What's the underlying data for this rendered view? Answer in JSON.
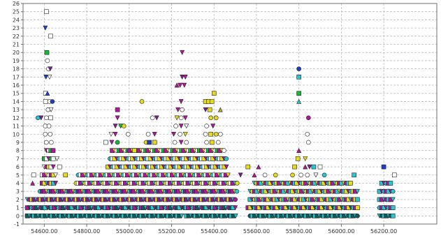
{
  "chart_data": {
    "type": "scatter",
    "title": "",
    "xlabel": "",
    "ylabel": "",
    "xlim": [
      54500,
      56450
    ],
    "ylim": [
      -1,
      26
    ],
    "grid": true,
    "legend": "none",
    "y_ticks": [
      "-1",
      "0",
      "1",
      "2",
      "3",
      "4",
      "5",
      "6",
      "7",
      "8",
      "9",
      "10",
      "11",
      "12",
      "13",
      "14",
      "15",
      "16",
      "17",
      "18",
      "19",
      "20",
      "21",
      "22",
      "23",
      "24",
      "25",
      "26"
    ],
    "x_ticks": [
      {
        "value": 54600,
        "label": "54600.00"
      },
      {
        "value": 54800,
        "label": "54800.00"
      },
      {
        "value": 55000,
        "label": "55000.00"
      },
      {
        "value": 55200,
        "label": "55200.00"
      },
      {
        "value": 55400,
        "label": "55400.00"
      },
      {
        "value": 55600,
        "label": "55600.00"
      },
      {
        "value": 55800,
        "label": "55800.00"
      },
      {
        "value": 56000,
        "label": "56000.00"
      },
      {
        "value": 56200,
        "label": "56200.00"
      }
    ],
    "colors": {
      "teal": "#0f5b5b",
      "cyan": "#27c6d0",
      "magenta": "#b0179b",
      "purple": "#7a1f8f",
      "yellow": "#e6db1a",
      "olive": "#a9a93a",
      "green": "#16b83a",
      "blue": "#1f3fc4",
      "white": "#ffffff",
      "gray": "#9a9a9a"
    },
    "bands": [
      {
        "y": 0,
        "x0": 54520,
        "x1": 55250,
        "colors": [
          "teal",
          "cyan"
        ]
      },
      {
        "y": 0,
        "x0": 55270,
        "x1": 55510,
        "colors": [
          "teal",
          "cyan"
        ]
      },
      {
        "y": 0,
        "x0": 55570,
        "x1": 56080,
        "colors": [
          "teal",
          "cyan"
        ]
      },
      {
        "y": 0,
        "x0": 56180,
        "x1": 56250,
        "colors": [
          "teal",
          "cyan"
        ]
      },
      {
        "y": 1,
        "x0": 54520,
        "x1": 55510,
        "colors": [
          "cyan",
          "magenta",
          "teal"
        ]
      },
      {
        "y": 1,
        "x0": 55560,
        "x1": 56080,
        "colors": [
          "cyan",
          "magenta",
          "yellow",
          "teal"
        ]
      },
      {
        "y": 1,
        "x0": 56180,
        "x1": 56250,
        "colors": [
          "cyan",
          "magenta"
        ]
      },
      {
        "y": 2,
        "x0": 54520,
        "x1": 55510,
        "colors": [
          "magenta",
          "yellow",
          "purple",
          "cyan"
        ]
      },
      {
        "y": 2,
        "x0": 55570,
        "x1": 56080,
        "colors": [
          "magenta",
          "yellow",
          "cyan"
        ]
      },
      {
        "y": 2,
        "x0": 56180,
        "x1": 56250,
        "colors": [
          "magenta",
          "cyan"
        ]
      },
      {
        "y": 3,
        "x0": 54580,
        "x1": 55510,
        "colors": [
          "magenta",
          "yellow",
          "cyan",
          "purple"
        ]
      },
      {
        "y": 3,
        "x0": 55570,
        "x1": 56080,
        "colors": [
          "yellow",
          "magenta",
          "cyan"
        ]
      },
      {
        "y": 3,
        "x0": 56180,
        "x1": 56250,
        "colors": [
          "cyan",
          "magenta"
        ]
      },
      {
        "y": 4,
        "x0": 54590,
        "x1": 54660,
        "colors": [
          "cyan",
          "magenta",
          "yellow"
        ]
      },
      {
        "y": 4,
        "x0": 54750,
        "x1": 55510,
        "colors": [
          "magenta",
          "cyan",
          "yellow",
          "white"
        ]
      },
      {
        "y": 4,
        "x0": 55590,
        "x1": 56050,
        "colors": [
          "cyan",
          "yellow",
          "magenta"
        ]
      },
      {
        "y": 4,
        "x0": 56190,
        "x1": 56240,
        "colors": [
          "cyan",
          "magenta"
        ]
      },
      {
        "y": 5,
        "x0": 54590,
        "x1": 54660,
        "colors": [
          "magenta",
          "yellow",
          "white"
        ]
      },
      {
        "y": 5,
        "x0": 54760,
        "x1": 55470,
        "colors": [
          "magenta",
          "yellow",
          "cyan",
          "white"
        ]
      },
      {
        "y": 6,
        "x0": 54600,
        "x1": 54650,
        "colors": [
          "yellow",
          "white",
          "magenta"
        ]
      },
      {
        "y": 6,
        "x0": 54900,
        "x1": 55460,
        "colors": [
          "yellow",
          "magenta",
          "cyan",
          "white"
        ]
      },
      {
        "y": 7,
        "x0": 54600,
        "x1": 54650,
        "colors": [
          "green",
          "white",
          "magenta"
        ]
      },
      {
        "y": 7,
        "x0": 54910,
        "x1": 55460,
        "colors": [
          "yellow",
          "magenta",
          "cyan",
          "white"
        ]
      },
      {
        "y": 8,
        "x0": 54610,
        "x1": 54650,
        "colors": [
          "white",
          "green",
          "magenta"
        ]
      },
      {
        "y": 8,
        "x0": 54920,
        "x1": 55450,
        "colors": [
          "magenta",
          "yellow",
          "white",
          "green"
        ]
      }
    ],
    "points": [
      {
        "x": 54610,
        "y": 25,
        "m": "square",
        "c": "white"
      },
      {
        "x": 54630,
        "y": 22,
        "m": "square",
        "c": "white"
      },
      {
        "x": 54605,
        "y": 23,
        "m": "triangle-down",
        "c": "blue"
      },
      {
        "x": 54612,
        "y": 20,
        "m": "square",
        "c": "green"
      },
      {
        "x": 54615,
        "y": 19,
        "m": "circle",
        "c": "white"
      },
      {
        "x": 54620,
        "y": 18,
        "m": "circle",
        "c": "white"
      },
      {
        "x": 54628,
        "y": 18,
        "m": "triangle-down",
        "c": "purple"
      },
      {
        "x": 54608,
        "y": 17,
        "m": "triangle-down",
        "c": "blue"
      },
      {
        "x": 54625,
        "y": 17,
        "m": "triangle-down",
        "c": "white"
      },
      {
        "x": 54606,
        "y": 15,
        "m": "square",
        "c": "white"
      },
      {
        "x": 54615,
        "y": 15,
        "m": "triangle-up",
        "c": "blue"
      },
      {
        "x": 54606,
        "y": 14,
        "m": "square",
        "c": "white"
      },
      {
        "x": 54625,
        "y": 14,
        "m": "circle",
        "c": "white"
      },
      {
        "x": 54638,
        "y": 14,
        "m": "circle",
        "c": "blue"
      },
      {
        "x": 54618,
        "y": 13,
        "m": "circle",
        "c": "white"
      },
      {
        "x": 54632,
        "y": 13,
        "m": "triangle-down",
        "c": "white"
      },
      {
        "x": 54570,
        "y": 12,
        "m": "circle",
        "c": "cyan"
      },
      {
        "x": 54585,
        "y": 12,
        "m": "triangle-down",
        "c": "purple"
      },
      {
        "x": 54610,
        "y": 12,
        "m": "circle",
        "c": "white"
      },
      {
        "x": 54630,
        "y": 12,
        "m": "square",
        "c": "white"
      },
      {
        "x": 54605,
        "y": 11,
        "m": "circle",
        "c": "white"
      },
      {
        "x": 54622,
        "y": 11,
        "m": "circle",
        "c": "white"
      },
      {
        "x": 54605,
        "y": 10,
        "m": "circle",
        "c": "white"
      },
      {
        "x": 54628,
        "y": 10,
        "m": "circle",
        "c": "white"
      },
      {
        "x": 54610,
        "y": 9,
        "m": "circle",
        "c": "white"
      },
      {
        "x": 54633,
        "y": 9,
        "m": "circle",
        "c": "white"
      },
      {
        "x": 54660,
        "y": 7,
        "m": "triangle-down",
        "c": "white"
      },
      {
        "x": 54672,
        "y": 6,
        "m": "square",
        "c": "white"
      },
      {
        "x": 54550,
        "y": 5,
        "m": "square",
        "c": "white"
      },
      {
        "x": 54700,
        "y": 5,
        "m": "square",
        "c": "yellow"
      },
      {
        "x": 54545,
        "y": 4,
        "m": "triangle-up",
        "c": "magenta"
      },
      {
        "x": 54945,
        "y": 13,
        "m": "square",
        "c": "magenta"
      },
      {
        "x": 54945,
        "y": 12,
        "m": "triangle-down",
        "c": "magenta"
      },
      {
        "x": 54935,
        "y": 11,
        "m": "triangle-down",
        "c": "purple"
      },
      {
        "x": 54960,
        "y": 11,
        "m": "triangle-down",
        "c": "green"
      },
      {
        "x": 54975,
        "y": 11,
        "m": "circle",
        "c": "yellow"
      },
      {
        "x": 54915,
        "y": 10,
        "m": "triangle-down",
        "c": "white"
      },
      {
        "x": 54935,
        "y": 10,
        "m": "triangle-down",
        "c": "magenta"
      },
      {
        "x": 54995,
        "y": 10,
        "m": "circle",
        "c": "white"
      },
      {
        "x": 54890,
        "y": 9,
        "m": "square",
        "c": "white"
      },
      {
        "x": 54918,
        "y": 9,
        "m": "triangle-down",
        "c": "magenta"
      },
      {
        "x": 54945,
        "y": 9,
        "m": "circle",
        "c": "green"
      },
      {
        "x": 55000,
        "y": 8,
        "m": "circle",
        "c": "magenta"
      },
      {
        "x": 55025,
        "y": 8,
        "m": "square",
        "c": "yellow"
      },
      {
        "x": 55080,
        "y": 9,
        "m": "circle",
        "c": "yellow"
      },
      {
        "x": 55095,
        "y": 9,
        "m": "square",
        "c": "blue"
      },
      {
        "x": 55120,
        "y": 9,
        "m": "square",
        "c": "yellow"
      },
      {
        "x": 55090,
        "y": 10,
        "m": "circle",
        "c": "white"
      },
      {
        "x": 55120,
        "y": 10,
        "m": "triangle-down",
        "c": "magenta"
      },
      {
        "x": 55060,
        "y": 14,
        "m": "circle",
        "c": "yellow"
      },
      {
        "x": 55110,
        "y": 12,
        "m": "circle",
        "c": "white"
      },
      {
        "x": 55130,
        "y": 12,
        "m": "triangle-down",
        "c": "purple"
      },
      {
        "x": 55250,
        "y": 20,
        "m": "triangle-down",
        "c": "magenta"
      },
      {
        "x": 55250,
        "y": 17,
        "m": "triangle-down",
        "c": "purple"
      },
      {
        "x": 55265,
        "y": 17,
        "m": "triangle-down",
        "c": "magenta"
      },
      {
        "x": 55225,
        "y": 16,
        "m": "triangle-up",
        "c": "magenta"
      },
      {
        "x": 55240,
        "y": 16,
        "m": "triangle-down",
        "c": "magenta"
      },
      {
        "x": 55260,
        "y": 16,
        "m": "triangle-down",
        "c": "magenta"
      },
      {
        "x": 55245,
        "y": 14,
        "m": "triangle-down",
        "c": "magenta"
      },
      {
        "x": 55230,
        "y": 13,
        "m": "triangle-down",
        "c": "magenta"
      },
      {
        "x": 55250,
        "y": 13,
        "m": "circle",
        "c": "white"
      },
      {
        "x": 55225,
        "y": 12,
        "m": "triangle-down",
        "c": "yellow"
      },
      {
        "x": 55245,
        "y": 12,
        "m": "circle",
        "c": "white"
      },
      {
        "x": 55265,
        "y": 12,
        "m": "triangle-down",
        "c": "magenta"
      },
      {
        "x": 55220,
        "y": 11,
        "m": "circle",
        "c": "white"
      },
      {
        "x": 55245,
        "y": 11,
        "m": "triangle-down",
        "c": "magenta"
      },
      {
        "x": 55270,
        "y": 11,
        "m": "triangle-down",
        "c": "white"
      },
      {
        "x": 55210,
        "y": 10,
        "m": "triangle-down",
        "c": "magenta"
      },
      {
        "x": 55240,
        "y": 10,
        "m": "circle",
        "c": "white"
      },
      {
        "x": 55265,
        "y": 10,
        "m": "triangle-down",
        "c": "yellow"
      },
      {
        "x": 55215,
        "y": 9,
        "m": "circle",
        "c": "white"
      },
      {
        "x": 55245,
        "y": 9,
        "m": "triangle-down",
        "c": "magenta"
      },
      {
        "x": 55270,
        "y": 9,
        "m": "circle",
        "c": "white"
      },
      {
        "x": 55400,
        "y": 15,
        "m": "square",
        "c": "yellow"
      },
      {
        "x": 55360,
        "y": 14,
        "m": "square",
        "c": "yellow"
      },
      {
        "x": 55375,
        "y": 14,
        "m": "square",
        "c": "yellow"
      },
      {
        "x": 55390,
        "y": 14,
        "m": "square",
        "c": "yellow"
      },
      {
        "x": 55360,
        "y": 13,
        "m": "triangle-down",
        "c": "purple"
      },
      {
        "x": 55380,
        "y": 13,
        "m": "square",
        "c": "yellow"
      },
      {
        "x": 55430,
        "y": 13,
        "m": "triangle-up",
        "c": "olive"
      },
      {
        "x": 55385,
        "y": 12,
        "m": "circle",
        "c": "yellow"
      },
      {
        "x": 55410,
        "y": 12,
        "m": "circle",
        "c": "yellow"
      },
      {
        "x": 55365,
        "y": 11,
        "m": "circle",
        "c": "white"
      },
      {
        "x": 55395,
        "y": 11,
        "m": "triangle-down",
        "c": "magenta"
      },
      {
        "x": 55360,
        "y": 10,
        "m": "circle",
        "c": "white"
      },
      {
        "x": 55385,
        "y": 10,
        "m": "square",
        "c": "yellow"
      },
      {
        "x": 55410,
        "y": 10,
        "m": "circle",
        "c": "yellow"
      },
      {
        "x": 55430,
        "y": 10,
        "m": "circle",
        "c": "white"
      },
      {
        "x": 55365,
        "y": 9,
        "m": "circle",
        "c": "white"
      },
      {
        "x": 55390,
        "y": 9,
        "m": "square",
        "c": "yellow"
      },
      {
        "x": 55420,
        "y": 9,
        "m": "circle",
        "c": "white"
      },
      {
        "x": 55560,
        "y": 6,
        "m": "square",
        "c": "yellow"
      },
      {
        "x": 55610,
        "y": 6,
        "m": "triangle-up",
        "c": "magenta"
      },
      {
        "x": 55525,
        "y": 5,
        "m": "triangle-down",
        "c": "purple"
      },
      {
        "x": 55590,
        "y": 5,
        "m": "triangle-up",
        "c": "magenta"
      },
      {
        "x": 55640,
        "y": 5,
        "m": "circle",
        "c": "white"
      },
      {
        "x": 55690,
        "y": 5,
        "m": "circle",
        "c": "yellow"
      },
      {
        "x": 55800,
        "y": 18,
        "m": "circle",
        "c": "blue"
      },
      {
        "x": 55800,
        "y": 17,
        "m": "square",
        "c": "cyan"
      },
      {
        "x": 55800,
        "y": 15,
        "m": "square",
        "c": "green"
      },
      {
        "x": 55800,
        "y": 14,
        "m": "triangle-up",
        "c": "cyan"
      },
      {
        "x": 55845,
        "y": 12,
        "m": "circle",
        "c": "magenta"
      },
      {
        "x": 55840,
        "y": 10,
        "m": "circle",
        "c": "white"
      },
      {
        "x": 55845,
        "y": 9,
        "m": "circle",
        "c": "white"
      },
      {
        "x": 55800,
        "y": 8,
        "m": "triangle-up",
        "c": "magenta"
      },
      {
        "x": 55795,
        "y": 7,
        "m": "square",
        "c": "yellow"
      },
      {
        "x": 55830,
        "y": 7,
        "m": "triangle-down",
        "c": "yellow"
      },
      {
        "x": 55780,
        "y": 6,
        "m": "square",
        "c": "yellow"
      },
      {
        "x": 55830,
        "y": 6,
        "m": "triangle-up",
        "c": "magenta"
      },
      {
        "x": 55850,
        "y": 6,
        "m": "triangle-down",
        "c": "purple"
      },
      {
        "x": 55870,
        "y": 6,
        "m": "square",
        "c": "cyan"
      },
      {
        "x": 55900,
        "y": 6,
        "m": "square",
        "c": "white"
      },
      {
        "x": 55770,
        "y": 5,
        "m": "circle",
        "c": "yellow"
      },
      {
        "x": 55810,
        "y": 5,
        "m": "circle",
        "c": "white"
      },
      {
        "x": 55840,
        "y": 5,
        "m": "circle",
        "c": "white"
      },
      {
        "x": 55880,
        "y": 5,
        "m": "triangle-down",
        "c": "white"
      },
      {
        "x": 55920,
        "y": 5,
        "m": "circle",
        "c": "cyan"
      },
      {
        "x": 56060,
        "y": 5,
        "m": "square",
        "c": "cyan"
      },
      {
        "x": 56200,
        "y": 6,
        "m": "square",
        "c": "blue"
      },
      {
        "x": 56250,
        "y": 5,
        "m": "square",
        "c": "white"
      }
    ]
  }
}
